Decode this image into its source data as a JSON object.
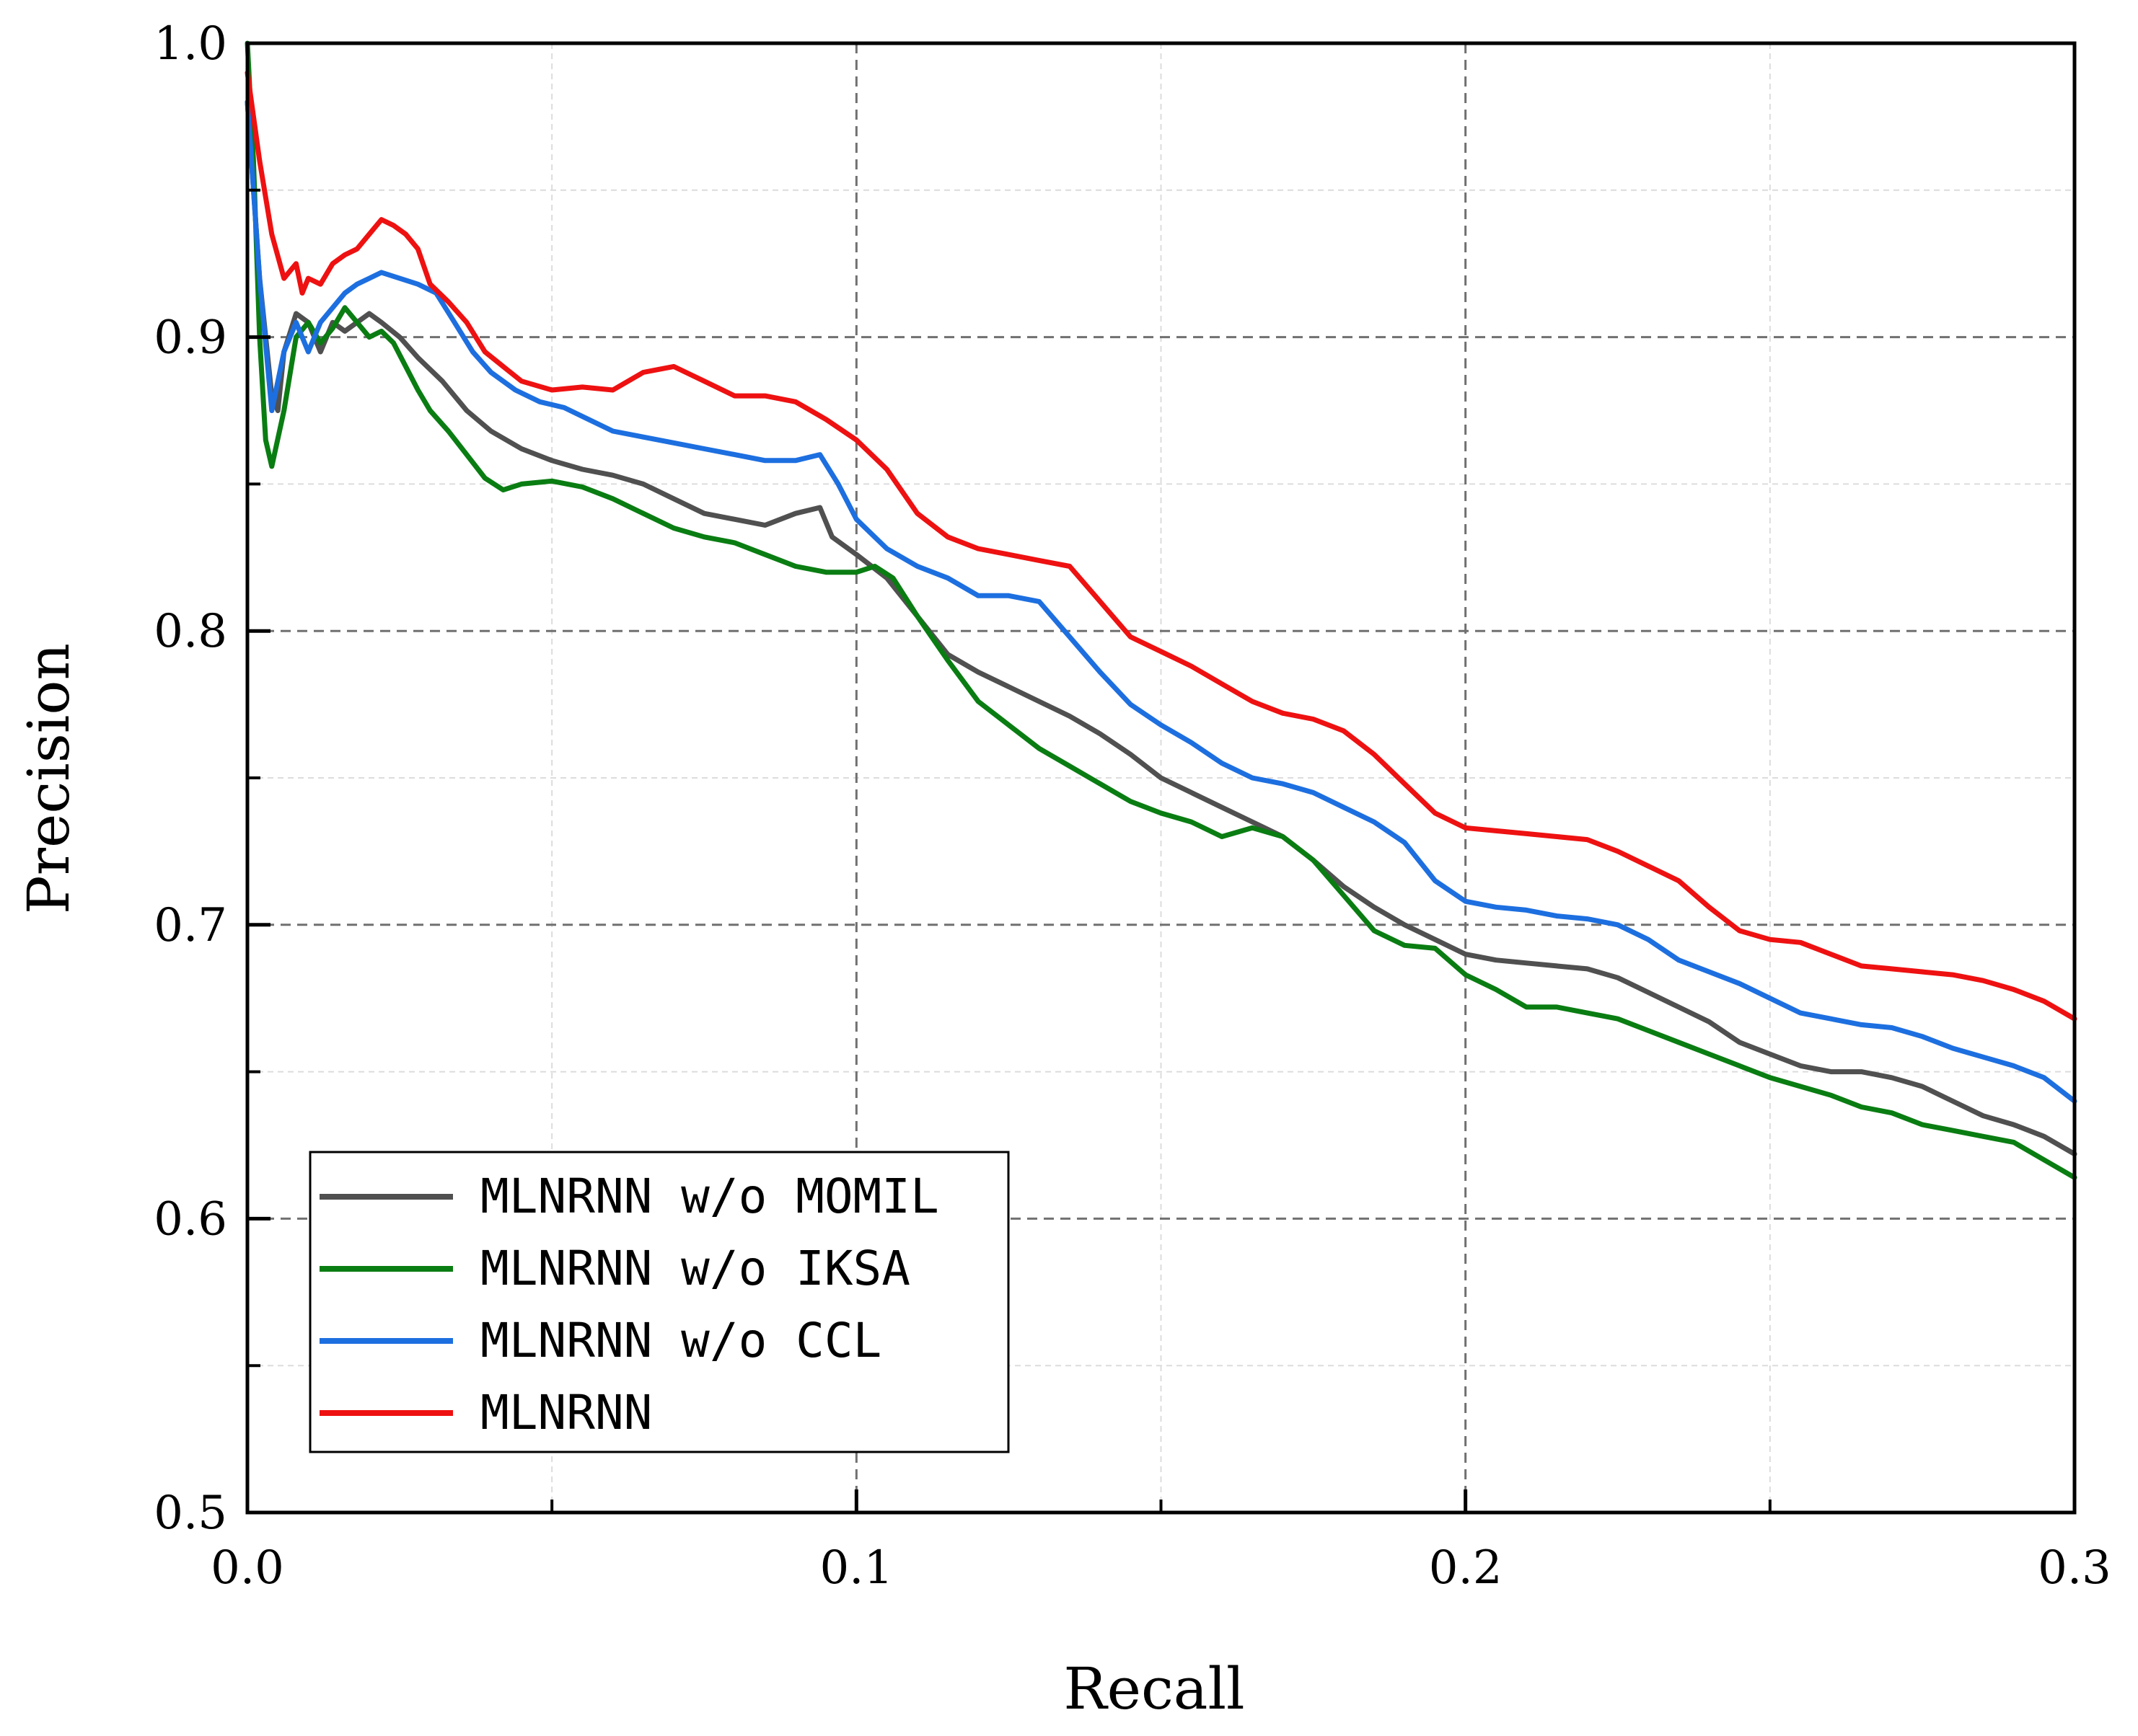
{
  "chart_data": {
    "type": "line",
    "title": "",
    "xlabel": "Recall",
    "ylabel": "Precision",
    "xlim": [
      0.0,
      0.3
    ],
    "ylim": [
      0.5,
      1.0
    ],
    "xticks": [
      0.0,
      0.1,
      0.2,
      0.3
    ],
    "xtick_labels": [
      "0.0",
      "0.1",
      "0.2",
      "0.3"
    ],
    "yticks": [
      0.5,
      0.6,
      0.7,
      0.8,
      0.9,
      1.0
    ],
    "ytick_labels": [
      "0.5",
      "0.6",
      "0.7",
      "0.8",
      "0.9",
      "1.0"
    ],
    "grid": true,
    "legend_position": "bottom-left",
    "series": [
      {
        "name": "MLNRNN w/o MOMIL",
        "color": "#505050",
        "x": [
          0.0,
          0.002,
          0.004,
          0.005,
          0.006,
          0.008,
          0.01,
          0.012,
          0.014,
          0.016,
          0.018,
          0.02,
          0.022,
          0.025,
          0.028,
          0.032,
          0.036,
          0.04,
          0.045,
          0.05,
          0.055,
          0.06,
          0.065,
          0.07,
          0.075,
          0.08,
          0.085,
          0.09,
          0.094,
          0.096,
          0.1,
          0.105,
          0.11,
          0.115,
          0.12,
          0.125,
          0.13,
          0.135,
          0.14,
          0.145,
          0.15,
          0.155,
          0.16,
          0.165,
          0.17,
          0.175,
          0.18,
          0.185,
          0.19,
          0.195,
          0.2,
          0.205,
          0.21,
          0.215,
          0.22,
          0.225,
          0.23,
          0.235,
          0.24,
          0.245,
          0.25,
          0.255,
          0.26,
          0.265,
          0.27,
          0.275,
          0.28,
          0.285,
          0.29,
          0.295,
          0.3
        ],
        "y": [
          0.98,
          0.92,
          0.88,
          0.875,
          0.895,
          0.908,
          0.905,
          0.895,
          0.905,
          0.902,
          0.905,
          0.908,
          0.905,
          0.9,
          0.893,
          0.885,
          0.875,
          0.868,
          0.862,
          0.858,
          0.855,
          0.853,
          0.85,
          0.845,
          0.84,
          0.838,
          0.836,
          0.84,
          0.842,
          0.832,
          0.826,
          0.818,
          0.805,
          0.792,
          0.786,
          0.781,
          0.776,
          0.771,
          0.765,
          0.758,
          0.75,
          0.745,
          0.74,
          0.735,
          0.73,
          0.722,
          0.713,
          0.706,
          0.7,
          0.695,
          0.69,
          0.688,
          0.687,
          0.686,
          0.685,
          0.682,
          0.677,
          0.672,
          0.667,
          0.66,
          0.656,
          0.652,
          0.65,
          0.65,
          0.648,
          0.645,
          0.64,
          0.635,
          0.632,
          0.628,
          0.622
        ]
      },
      {
        "name": "MLNRNN w/o IKSA",
        "color": "#0a7d12",
        "x": [
          0.0,
          0.001,
          0.002,
          0.003,
          0.004,
          0.006,
          0.008,
          0.01,
          0.012,
          0.014,
          0.016,
          0.018,
          0.02,
          0.022,
          0.024,
          0.026,
          0.028,
          0.03,
          0.033,
          0.036,
          0.039,
          0.042,
          0.045,
          0.05,
          0.055,
          0.06,
          0.065,
          0.07,
          0.075,
          0.08,
          0.085,
          0.09,
          0.095,
          0.1,
          0.103,
          0.106,
          0.11,
          0.115,
          0.12,
          0.125,
          0.13,
          0.135,
          0.14,
          0.145,
          0.15,
          0.155,
          0.16,
          0.165,
          0.17,
          0.175,
          0.18,
          0.185,
          0.19,
          0.195,
          0.2,
          0.205,
          0.21,
          0.215,
          0.22,
          0.225,
          0.23,
          0.235,
          0.24,
          0.245,
          0.25,
          0.255,
          0.26,
          0.265,
          0.27,
          0.275,
          0.28,
          0.285,
          0.29,
          0.295,
          0.3
        ],
        "y": [
          1.0,
          0.96,
          0.9,
          0.865,
          0.856,
          0.875,
          0.9,
          0.905,
          0.898,
          0.903,
          0.91,
          0.905,
          0.9,
          0.902,
          0.898,
          0.89,
          0.882,
          0.875,
          0.868,
          0.86,
          0.852,
          0.848,
          0.85,
          0.851,
          0.849,
          0.845,
          0.84,
          0.835,
          0.832,
          0.83,
          0.826,
          0.822,
          0.82,
          0.82,
          0.822,
          0.818,
          0.805,
          0.79,
          0.776,
          0.768,
          0.76,
          0.754,
          0.748,
          0.742,
          0.738,
          0.735,
          0.73,
          0.733,
          0.73,
          0.722,
          0.71,
          0.698,
          0.693,
          0.692,
          0.683,
          0.678,
          0.672,
          0.672,
          0.67,
          0.668,
          0.664,
          0.66,
          0.656,
          0.652,
          0.648,
          0.645,
          0.642,
          0.638,
          0.636,
          0.632,
          0.63,
          0.628,
          0.626,
          0.62,
          0.614
        ]
      },
      {
        "name": "MLNRNN w/o CCL",
        "color": "#1d6fe0",
        "x": [
          0.0,
          0.002,
          0.004,
          0.006,
          0.008,
          0.01,
          0.012,
          0.014,
          0.016,
          0.018,
          0.02,
          0.022,
          0.025,
          0.028,
          0.031,
          0.034,
          0.037,
          0.04,
          0.044,
          0.048,
          0.052,
          0.056,
          0.06,
          0.065,
          0.07,
          0.075,
          0.08,
          0.085,
          0.09,
          0.094,
          0.097,
          0.1,
          0.105,
          0.11,
          0.115,
          0.12,
          0.125,
          0.13,
          0.135,
          0.14,
          0.145,
          0.15,
          0.155,
          0.16,
          0.165,
          0.17,
          0.175,
          0.18,
          0.185,
          0.19,
          0.195,
          0.2,
          0.205,
          0.21,
          0.215,
          0.22,
          0.225,
          0.23,
          0.235,
          0.24,
          0.245,
          0.25,
          0.255,
          0.26,
          0.265,
          0.27,
          0.275,
          0.28,
          0.285,
          0.29,
          0.295,
          0.3
        ],
        "y": [
          0.98,
          0.92,
          0.875,
          0.895,
          0.905,
          0.895,
          0.905,
          0.91,
          0.915,
          0.918,
          0.92,
          0.922,
          0.92,
          0.918,
          0.915,
          0.905,
          0.895,
          0.888,
          0.882,
          0.878,
          0.876,
          0.872,
          0.868,
          0.866,
          0.864,
          0.862,
          0.86,
          0.858,
          0.858,
          0.86,
          0.85,
          0.838,
          0.828,
          0.822,
          0.818,
          0.812,
          0.812,
          0.81,
          0.798,
          0.786,
          0.775,
          0.768,
          0.762,
          0.755,
          0.75,
          0.748,
          0.745,
          0.74,
          0.735,
          0.728,
          0.715,
          0.708,
          0.706,
          0.705,
          0.703,
          0.702,
          0.7,
          0.695,
          0.688,
          0.684,
          0.68,
          0.675,
          0.67,
          0.668,
          0.666,
          0.665,
          0.662,
          0.658,
          0.655,
          0.652,
          0.648,
          0.64
        ]
      },
      {
        "name": "MLNRNN",
        "color": "#ee1111",
        "x": [
          0.0,
          0.002,
          0.004,
          0.006,
          0.008,
          0.009,
          0.01,
          0.012,
          0.014,
          0.016,
          0.018,
          0.02,
          0.022,
          0.024,
          0.026,
          0.028,
          0.03,
          0.033,
          0.036,
          0.039,
          0.042,
          0.045,
          0.05,
          0.055,
          0.06,
          0.065,
          0.07,
          0.075,
          0.08,
          0.085,
          0.09,
          0.095,
          0.1,
          0.105,
          0.11,
          0.115,
          0.12,
          0.125,
          0.13,
          0.135,
          0.14,
          0.145,
          0.15,
          0.155,
          0.16,
          0.165,
          0.17,
          0.175,
          0.18,
          0.185,
          0.19,
          0.195,
          0.2,
          0.205,
          0.21,
          0.215,
          0.22,
          0.225,
          0.23,
          0.235,
          0.24,
          0.245,
          0.25,
          0.255,
          0.26,
          0.265,
          0.27,
          0.275,
          0.28,
          0.285,
          0.29,
          0.295,
          0.3
        ],
        "y": [
          0.99,
          0.96,
          0.935,
          0.92,
          0.925,
          0.915,
          0.92,
          0.918,
          0.925,
          0.928,
          0.93,
          0.935,
          0.94,
          0.938,
          0.935,
          0.93,
          0.918,
          0.912,
          0.905,
          0.895,
          0.89,
          0.885,
          0.882,
          0.883,
          0.882,
          0.888,
          0.89,
          0.885,
          0.88,
          0.88,
          0.878,
          0.872,
          0.865,
          0.855,
          0.84,
          0.832,
          0.828,
          0.826,
          0.824,
          0.822,
          0.81,
          0.798,
          0.793,
          0.788,
          0.782,
          0.776,
          0.772,
          0.77,
          0.766,
          0.758,
          0.748,
          0.738,
          0.733,
          0.732,
          0.731,
          0.73,
          0.729,
          0.725,
          0.72,
          0.715,
          0.706,
          0.698,
          0.695,
          0.694,
          0.69,
          0.686,
          0.685,
          0.684,
          0.683,
          0.681,
          0.678,
          0.674,
          0.668
        ]
      }
    ]
  }
}
